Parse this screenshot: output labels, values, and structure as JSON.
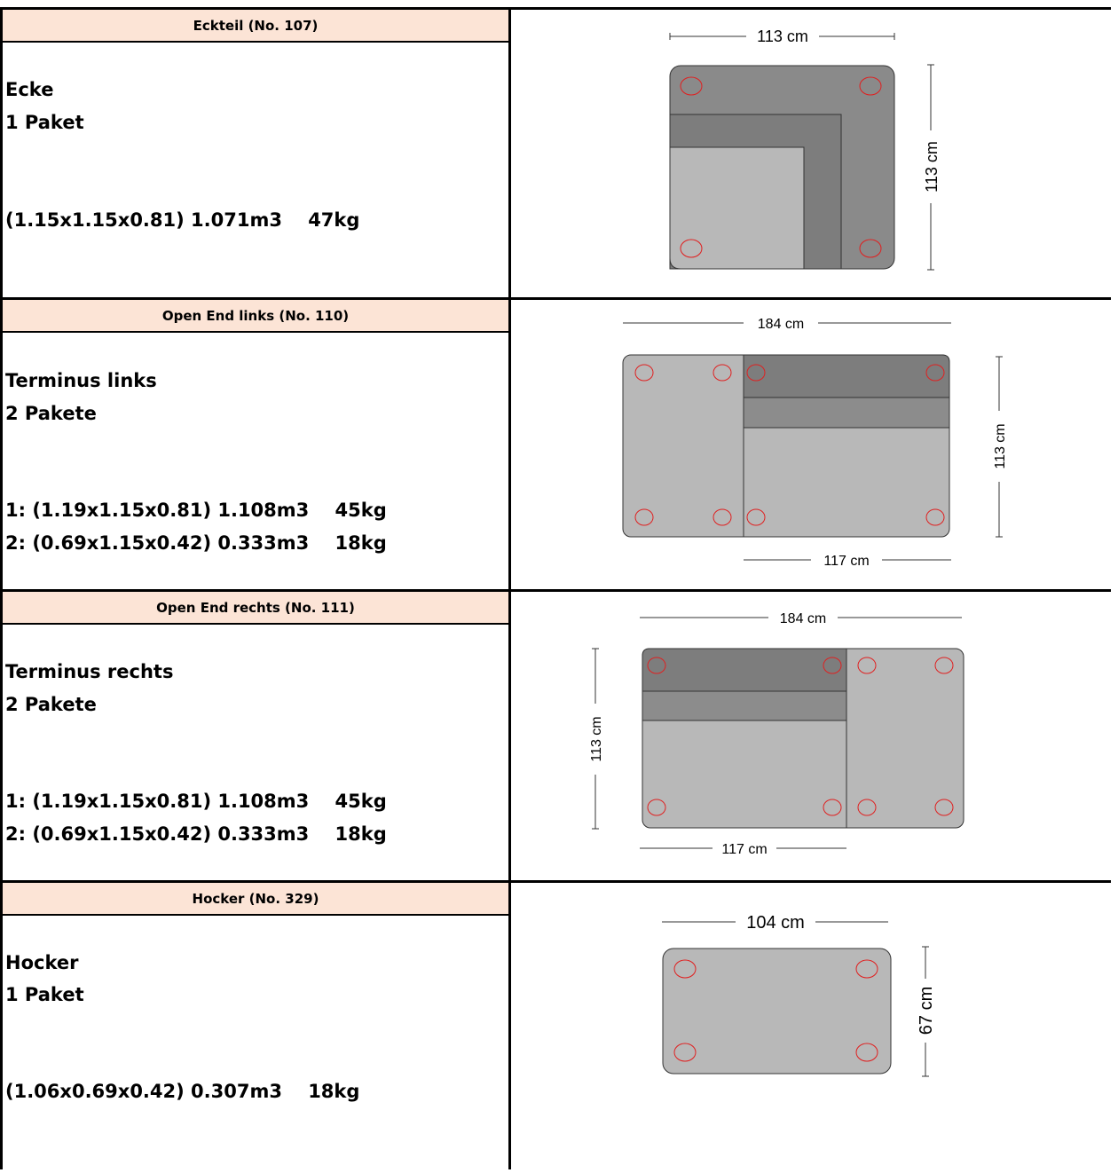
{
  "rows": [
    {
      "header": "Eckteil (No. 107)",
      "name": "Ecke",
      "packages": "1 Paket",
      "dims1": "(1.15x1.15x0.81) 1.071m3    47kg",
      "dims2": "",
      "dim_top": "113 cm",
      "dim_side": "113 cm"
    },
    {
      "header": "Open End links (No. 110)",
      "name": "Terminus links",
      "packages": "2 Pakete",
      "dims1": "1: (1.19x1.15x0.81) 1.108m3    45kg",
      "dims2": "2: (0.69x1.15x0.42) 0.333m3    18kg",
      "dim_top": "184 cm",
      "dim_side": "113 cm",
      "dim_bottom": "117 cm"
    },
    {
      "header": "Open End rechts (No. 111)",
      "name": "Terminus rechts",
      "packages": "2 Pakete",
      "dims1": "1: (1.19x1.15x0.81) 1.108m3    45kg",
      "dims2": "2: (0.69x1.15x0.42) 0.333m3    18kg",
      "dim_top": "184 cm",
      "dim_side": "113 cm",
      "dim_bottom": "117 cm"
    },
    {
      "header": "Hocker (No. 329)",
      "name": "Hocker",
      "packages": "1 Paket",
      "dims1": "(1.06x0.69x0.42) 0.307m3    18kg",
      "dims2": "",
      "dim_top": "104 cm",
      "dim_side": "67 cm"
    }
  ],
  "colors": {
    "header_bg": "#fce4d6",
    "seat_light": "#b8b8b8",
    "seat_mid": "#8c8c8c",
    "seat_dark": "#7f7f7f",
    "leg_circle": "#e02020"
  }
}
